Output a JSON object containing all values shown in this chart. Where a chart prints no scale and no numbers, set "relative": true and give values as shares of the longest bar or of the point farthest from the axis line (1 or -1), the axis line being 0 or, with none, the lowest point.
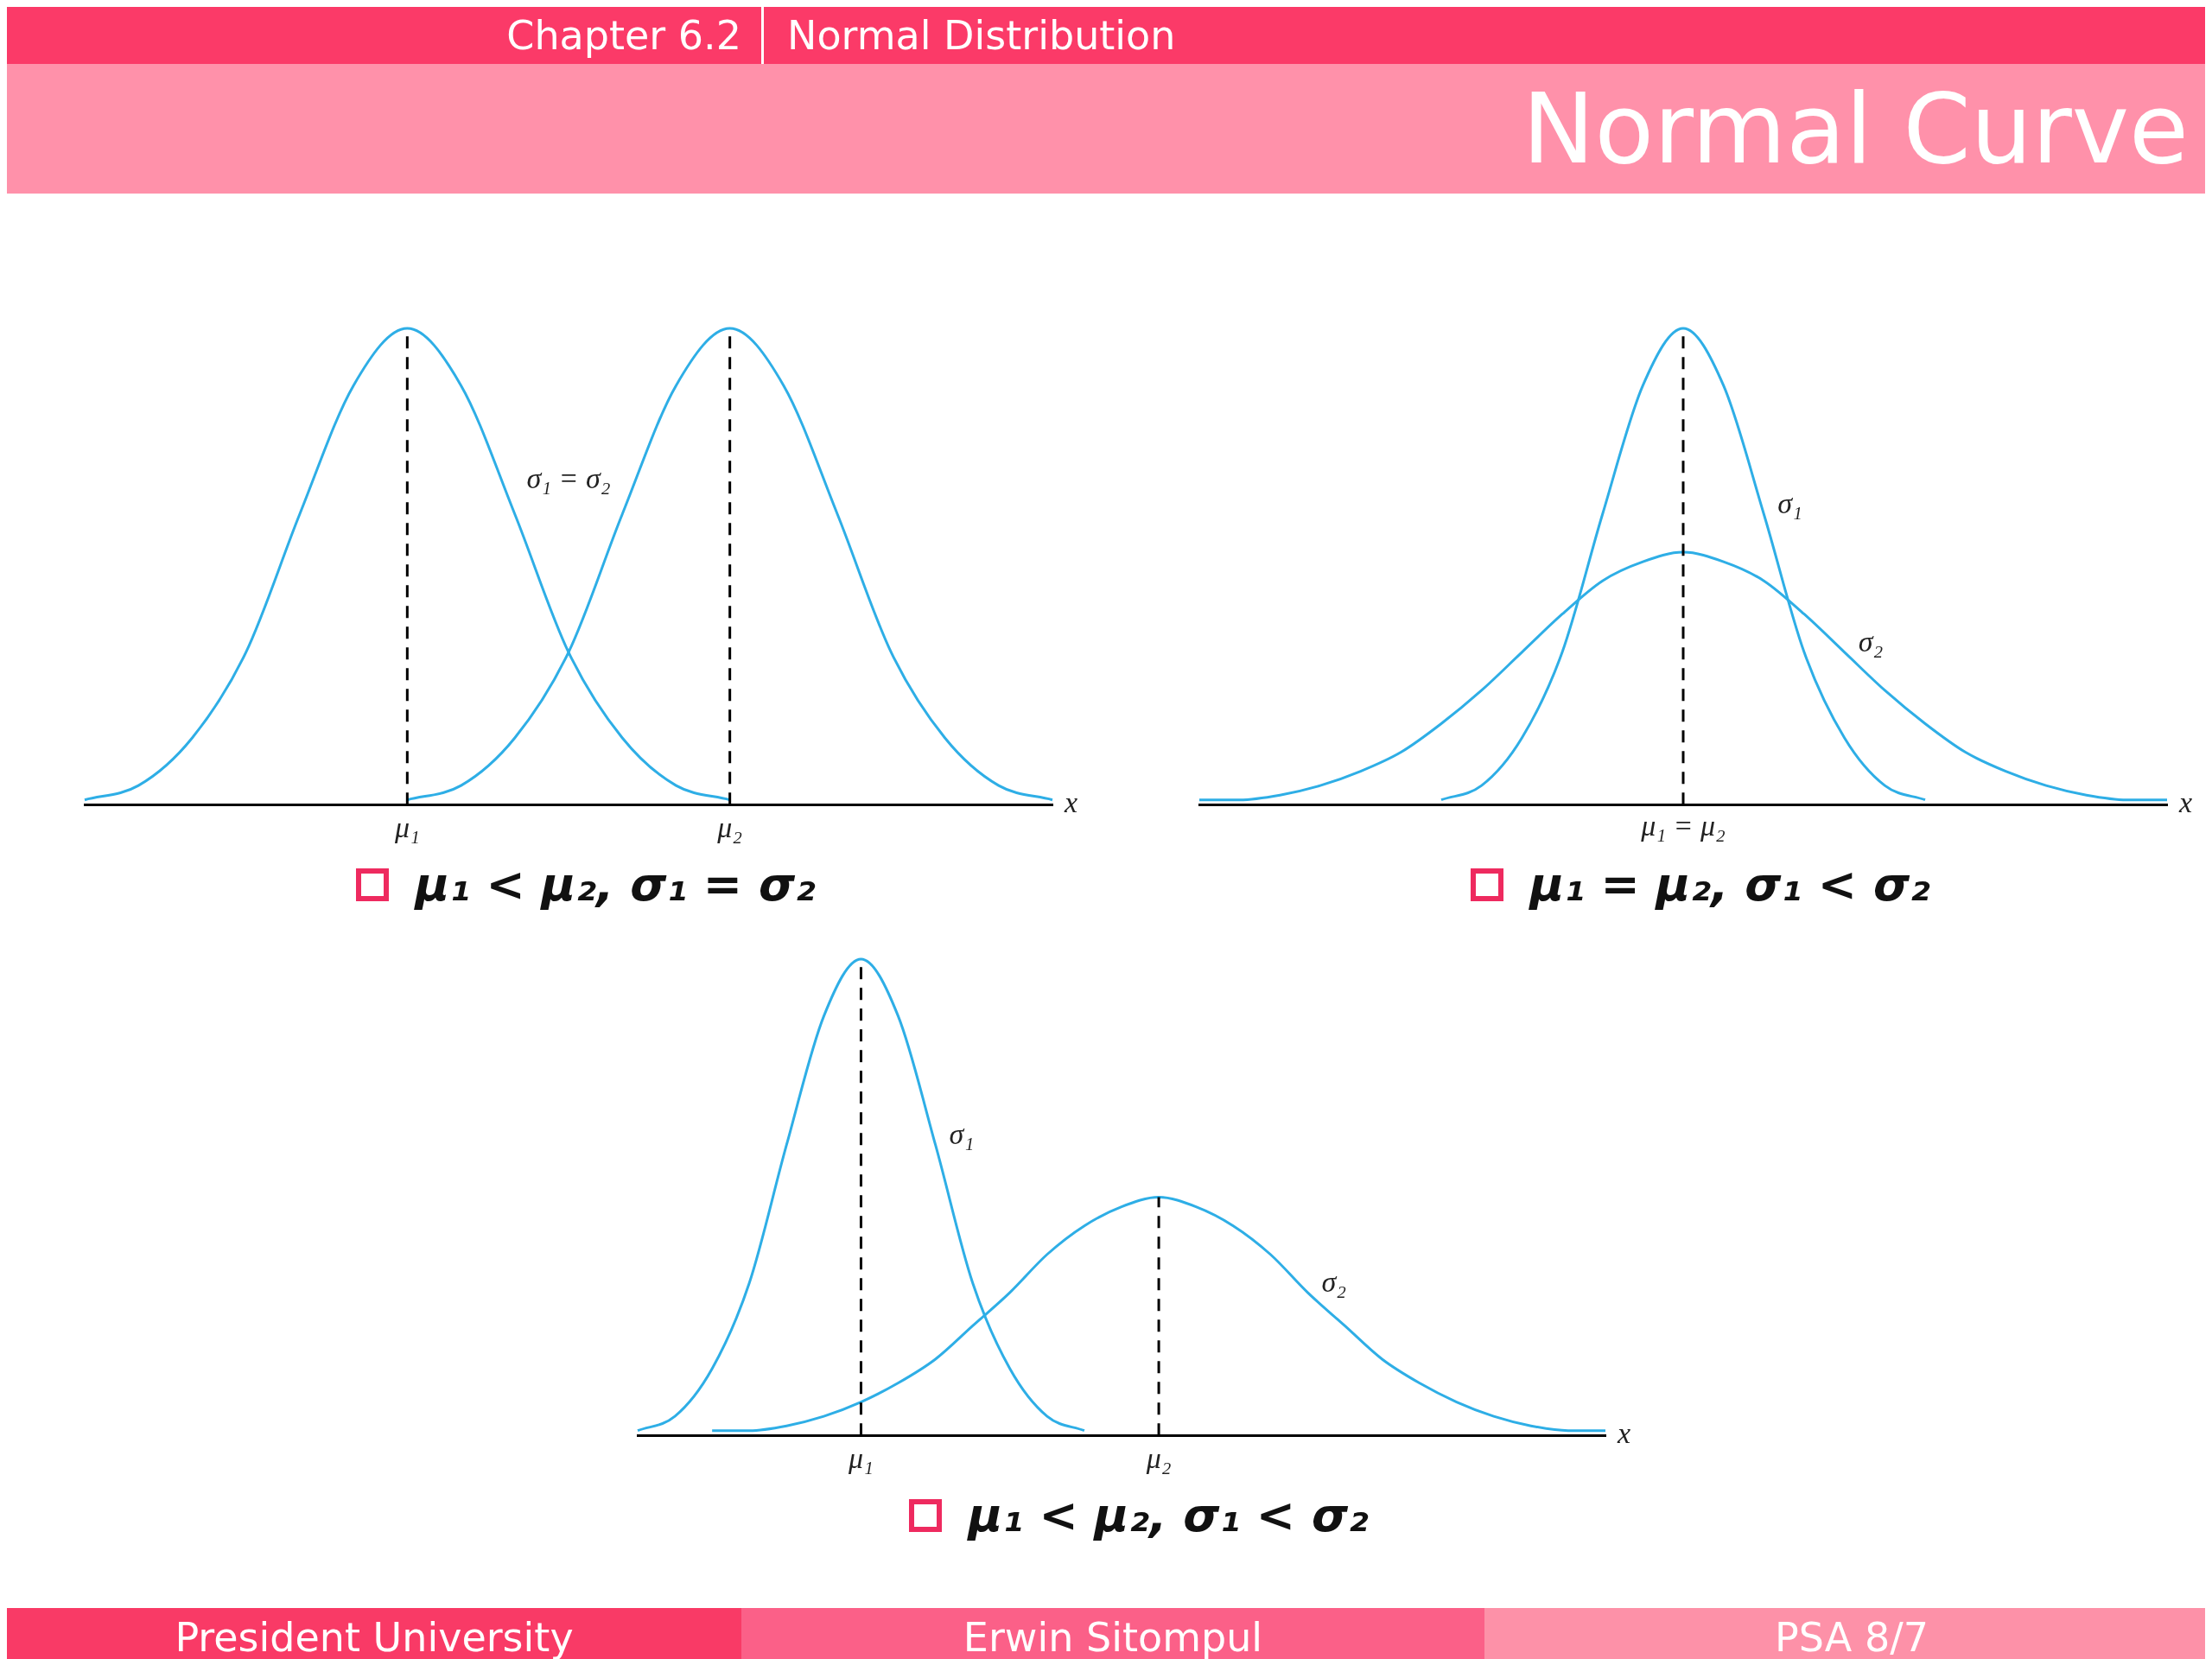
{
  "chart_data": [
    {
      "type": "other",
      "title": "Normal Curve",
      "annotations": [
        "Chapter 6.2",
        "Normal Distribution",
        "President University",
        "Erwin Sitompul",
        "PSA 8/7"
      ]
    },
    {
      "type": "line",
      "title": "μ₁ < μ₂, σ₁ = σ₂",
      "xlabel": "x",
      "relative": true,
      "annotations": [
        "σ₁ = σ₂"
      ],
      "categories": [
        null,
        null,
        null,
        null,
        null,
        null,
        "μ₁",
        null,
        null,
        null,
        null,
        null,
        "μ₂",
        null,
        null,
        null,
        null,
        null,
        null
      ],
      "series": [
        {
          "color": "#2eaee6",
          "values": [
            0.01,
            0.04,
            0.14,
            0.32,
            0.61,
            0.88,
            1,
            0.88,
            0.61,
            0.32,
            0.14,
            0.04,
            0.01,
            null,
            null,
            null,
            null,
            null,
            null
          ]
        },
        {
          "color": "#2eaee6",
          "values": [
            null,
            null,
            null,
            null,
            null,
            null,
            0.01,
            0.04,
            0.14,
            0.32,
            0.61,
            0.88,
            1,
            0.88,
            0.61,
            0.32,
            0.14,
            0.04,
            0.01
          ]
        }
      ],
      "ref_lines": [
        {
          "axis": "x",
          "value": "μ₁",
          "color": "#000000",
          "line_style": "dashed"
        },
        {
          "axis": "x",
          "value": "μ₂",
          "color": "#000000",
          "line_style": "dashed"
        }
      ]
    },
    {
      "type": "line",
      "title": "μ₁ = μ₂, σ₁ < σ₂",
      "xlabel": "x",
      "relative": true,
      "categories": [
        null,
        null,
        null,
        null,
        null,
        null,
        null,
        null,
        null,
        null,
        null,
        null,
        null,
        null,
        null,
        null,
        null,
        null,
        null,
        null,
        null,
        null,
        null,
        null,
        null
      ],
      "series": [
        {
          "name": "σ₁",
          "color": "#2eaee6",
          "values": [
            null,
            null,
            null,
            null,
            null,
            null,
            0.01,
            0.04,
            0.14,
            0.32,
            0.61,
            0.88,
            1,
            0.88,
            0.61,
            0.32,
            0.14,
            0.04,
            0.01,
            null,
            null,
            null,
            null,
            null,
            null
          ]
        },
        {
          "name": "σ₂",
          "color": "#2eaee6",
          "values": [
            0.01,
            0.01,
            0.02,
            0.04,
            0.07,
            0.11,
            0.17,
            0.24,
            0.32,
            0.4,
            0.47,
            0.51,
            0.53,
            0.51,
            0.47,
            0.4,
            0.32,
            0.24,
            0.17,
            0.11,
            0.07,
            0.04,
            0.02,
            0.01,
            0.01
          ]
        }
      ],
      "ref_lines": [
        {
          "axis": "x",
          "label": "μ₁ = μ₂",
          "color": "#000000",
          "line_style": "dashed"
        }
      ]
    },
    {
      "type": "line",
      "title": "μ₁ < μ₂, σ₁ < σ₂",
      "xlabel": "x",
      "relative": true,
      "categories": [
        null,
        null,
        null,
        null,
        null,
        null,
        "μ₁",
        null,
        null,
        null,
        null,
        null,
        null,
        null,
        "μ₂",
        null,
        null,
        null,
        null,
        null,
        null,
        null,
        null,
        null,
        null,
        null,
        null
      ],
      "series": [
        {
          "name": "σ₁",
          "color": "#2eaee6",
          "values": [
            0.01,
            0.04,
            0.14,
            0.32,
            0.61,
            0.88,
            1,
            0.88,
            0.61,
            0.32,
            0.14,
            0.04,
            0.01,
            null,
            null,
            null,
            null,
            null,
            null,
            null,
            null,
            null,
            null,
            null,
            null,
            null,
            null
          ]
        },
        {
          "name": "σ₂",
          "color": "#2eaee6",
          "values": [
            null,
            null,
            0.01,
            0.01,
            0.02,
            0.04,
            0.07,
            0.11,
            0.16,
            0.23,
            0.3,
            0.38,
            0.44,
            0.48,
            0.5,
            0.48,
            0.44,
            0.38,
            0.3,
            0.23,
            0.16,
            0.11,
            0.07,
            0.04,
            0.02,
            0.01,
            0.01
          ]
        }
      ],
      "ref_lines": [
        {
          "axis": "x",
          "value": "μ₁",
          "color": "#000000",
          "line_style": "dashed"
        },
        {
          "axis": "x",
          "value": "μ₂",
          "color": "#000000",
          "line_style": "dashed"
        }
      ]
    }
  ]
}
